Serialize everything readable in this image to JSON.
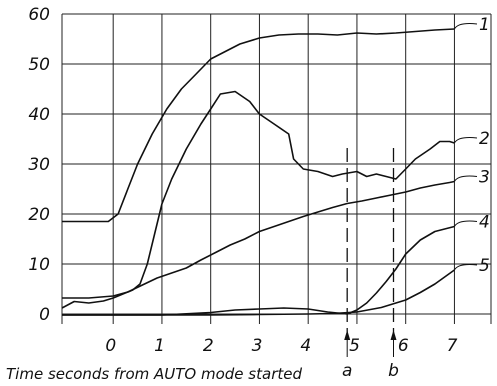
{
  "chart_data": {
    "type": "line",
    "title": "",
    "xlabel": "Time seconds from AUTO mode started",
    "ylabel": "",
    "xlim": [
      -1.05,
      7.75
    ],
    "ylim": [
      -2,
      60
    ],
    "grid": true,
    "x_ticks": [
      {
        "value": 0,
        "label": "0"
      },
      {
        "value": 1,
        "label": "1"
      },
      {
        "value": 2,
        "label": "2"
      },
      {
        "value": 3,
        "label": "3"
      },
      {
        "value": 4,
        "label": "4"
      },
      {
        "value": 5,
        "label": "5"
      },
      {
        "value": 6,
        "label": "6"
      },
      {
        "value": 7,
        "label": "7"
      }
    ],
    "y_ticks": [
      {
        "value": 0,
        "label": "0"
      },
      {
        "value": 10,
        "label": "10"
      },
      {
        "value": 20,
        "label": "20"
      },
      {
        "value": 30,
        "label": "30"
      },
      {
        "value": 40,
        "label": "40"
      },
      {
        "value": 50,
        "label": "50"
      },
      {
        "value": 60,
        "label": "60"
      }
    ],
    "markers": [
      {
        "label": "a",
        "x": 4.8
      },
      {
        "label": "b",
        "x": 5.75
      }
    ],
    "series": [
      {
        "name": "1",
        "x": [
          -1.05,
          -0.1,
          0.1,
          0.3,
          0.5,
          0.8,
          1.1,
          1.4,
          1.7,
          2.0,
          2.3,
          2.6,
          3.0,
          3.4,
          3.8,
          4.2,
          4.6,
          5.0,
          5.4,
          5.8,
          6.2,
          6.6,
          7.0
        ],
        "y": [
          18.5,
          18.5,
          20,
          25,
          30,
          36,
          41,
          45,
          48,
          51,
          52.5,
          54,
          55.2,
          55.8,
          56,
          56,
          55.8,
          56.2,
          56,
          56.2,
          56.5,
          56.8,
          57
        ]
      },
      {
        "name": "2",
        "x": [
          -1.05,
          -0.8,
          -0.5,
          -0.2,
          0.0,
          0.2,
          0.4,
          0.55,
          0.7,
          0.85,
          1.0,
          1.2,
          1.5,
          1.8,
          2.0,
          2.2,
          2.5,
          2.8,
          3.0,
          3.3,
          3.6,
          3.7,
          3.9,
          4.2,
          4.5,
          4.7,
          5.0,
          5.2,
          5.4,
          5.6,
          5.8,
          6.0,
          6.2,
          6.5,
          6.7,
          6.9,
          7.0
        ],
        "y": [
          1.2,
          2.5,
          2.2,
          2.6,
          3.2,
          4.0,
          4.8,
          6.0,
          10,
          16,
          22,
          27,
          33,
          38,
          41,
          44,
          44.5,
          42.5,
          40,
          38,
          36,
          31,
          29,
          28.5,
          27.5,
          28,
          28.5,
          27.5,
          28,
          27.5,
          27,
          29,
          31,
          33,
          34.5,
          34.5,
          34.2
        ]
      },
      {
        "name": "3",
        "x": [
          -1.05,
          -0.5,
          0.0,
          0.3,
          0.6,
          0.9,
          1.2,
          1.5,
          1.8,
          2.1,
          2.4,
          2.7,
          3.0,
          3.3,
          3.6,
          3.9,
          4.2,
          4.5,
          4.8,
          5.1,
          5.4,
          5.7,
          6.0,
          6.3,
          6.6,
          6.9,
          7.0
        ],
        "y": [
          3.2,
          3.2,
          3.6,
          4.4,
          5.8,
          7.2,
          8.2,
          9.2,
          10.8,
          12.3,
          13.8,
          15.0,
          16.5,
          17.5,
          18.5,
          19.5,
          20.4,
          21.3,
          22.1,
          22.6,
          23.2,
          23.8,
          24.4,
          25.2,
          25.8,
          26.3,
          26.5
        ]
      },
      {
        "name": "4",
        "x": [
          -1.05,
          0.0,
          1.0,
          2.0,
          2.5,
          3.0,
          3.5,
          4.0,
          4.4,
          4.8,
          5.0,
          5.2,
          5.4,
          5.6,
          5.8,
          6.0,
          6.3,
          6.6,
          7.0
        ],
        "y": [
          -0.2,
          -0.2,
          -0.2,
          0.3,
          0.8,
          1.0,
          1.2,
          1.0,
          0.4,
          0.0,
          0.8,
          2.2,
          4.2,
          6.5,
          9.0,
          12.0,
          14.8,
          16.5,
          17.5
        ]
      },
      {
        "name": "5",
        "x": [
          -1.05,
          0.0,
          1.0,
          2.0,
          3.0,
          4.0,
          4.5,
          5.0,
          5.5,
          6.0,
          6.3,
          6.6,
          7.0
        ],
        "y": [
          -0.2,
          -0.2,
          -0.2,
          -0.2,
          -0.1,
          0.0,
          0.1,
          0.4,
          1.3,
          2.8,
          4.3,
          6.0,
          8.8
        ]
      }
    ]
  }
}
